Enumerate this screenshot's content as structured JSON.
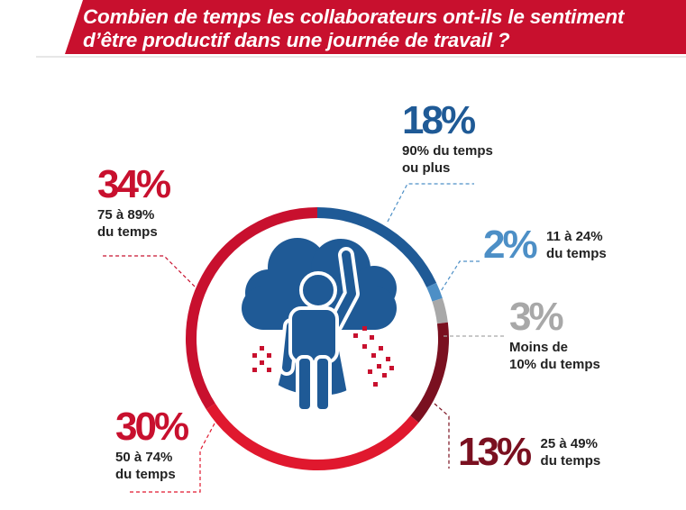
{
  "header": {
    "title_line1": "Combien de temps les collaborateurs ont-ils le sentiment",
    "title_line2": "d’être productif dans une journée de travail ?",
    "banner_color": "#c8102e"
  },
  "chart_data": {
    "type": "pie",
    "style": "donut-ring",
    "title": "Combien de temps les collaborateurs ont-ils le sentiment d’être productif dans une journée de travail ?",
    "center_icon": "person-cape-cloud-icon",
    "slices": [
      {
        "percent_label": "18%",
        "value": 18,
        "label_line1": "90% du temps",
        "label_line2": "ou plus",
        "color": "#1f5a96"
      },
      {
        "percent_label": "2%",
        "value": 2,
        "label_line1": "11 à 24%",
        "label_line2": "du temps",
        "color": "#4d8fc6"
      },
      {
        "percent_label": "3%",
        "value": 3,
        "label_line1": "Moins de",
        "label_line2": "10% du temps",
        "color": "#a8a8a8"
      },
      {
        "percent_label": "13%",
        "value": 13,
        "label_line1": "25 à 49%",
        "label_line2": "du temps",
        "color": "#7a1020"
      },
      {
        "percent_label": "30%",
        "value": 30,
        "label_line1": "50 à 74%",
        "label_line2": "du temps",
        "color": "#e0182e"
      },
      {
        "percent_label": "34%",
        "value": 34,
        "label_line1": "75 à 89%",
        "label_line2": "du temps",
        "color": "#c8102e"
      }
    ]
  }
}
